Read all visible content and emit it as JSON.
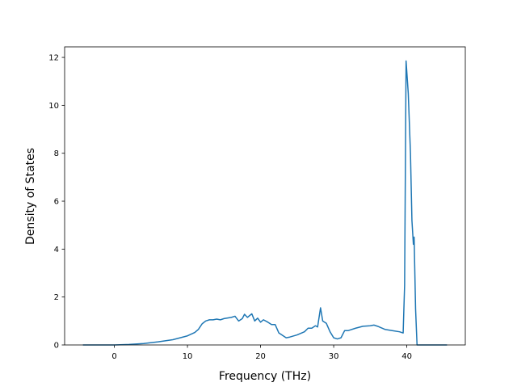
{
  "chart_data": {
    "type": "line",
    "x_label": "Frequency (THz)",
    "y_label": "Density of States",
    "series": [
      {
        "color": "#1f77b4",
        "x": [
          -4.3,
          0,
          2,
          4,
          6,
          8,
          10,
          11,
          11.5,
          12,
          12.5,
          13,
          13.5,
          14,
          14.5,
          15,
          16,
          16.5,
          17,
          17.5,
          17.8,
          18.2,
          18.8,
          19.2,
          19.6,
          20,
          20.4,
          21,
          21.5,
          22,
          22.5,
          23,
          23.5,
          24,
          25,
          26,
          26.5,
          27,
          27.5,
          27.8,
          28.2,
          28.5,
          29,
          29.5,
          30,
          30.5,
          31,
          31.5,
          32,
          33,
          34,
          35,
          35.5,
          36,
          37,
          38,
          39,
          39.5,
          39.7,
          39.9,
          40.2,
          40.5,
          40.7,
          40.9,
          41.0,
          41.2,
          41.4,
          45.5
        ],
        "values": [
          0,
          0,
          0.02,
          0.06,
          0.13,
          0.22,
          0.38,
          0.52,
          0.65,
          0.88,
          1.0,
          1.05,
          1.05,
          1.08,
          1.05,
          1.1,
          1.15,
          1.2,
          1.0,
          1.1,
          1.28,
          1.15,
          1.3,
          1.0,
          1.12,
          0.95,
          1.05,
          0.95,
          0.85,
          0.85,
          0.5,
          0.4,
          0.3,
          0.33,
          0.42,
          0.55,
          0.7,
          0.7,
          0.8,
          0.75,
          1.55,
          1.0,
          0.9,
          0.55,
          0.3,
          0.25,
          0.3,
          0.6,
          0.6,
          0.7,
          0.78,
          0.8,
          0.83,
          0.78,
          0.65,
          0.6,
          0.55,
          0.5,
          2.5,
          11.85,
          10.5,
          8.0,
          5.2,
          4.2,
          4.5,
          1.5,
          0,
          0
        ]
      }
    ],
    "xlim": [
      -6.8,
      48.0
    ],
    "xticks": [
      0,
      10,
      20,
      30,
      40
    ],
    "ylim": [
      0,
      12.44
    ],
    "yticks": [
      0,
      2,
      4,
      6,
      8,
      10,
      12
    ]
  }
}
